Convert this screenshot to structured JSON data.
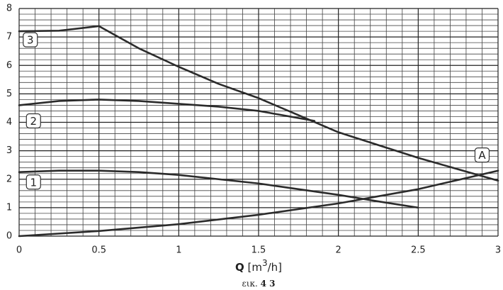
{
  "chart_data": {
    "type": "line",
    "x_label": {
      "symbol": "Q",
      "unit_open": "[m",
      "unit_power": "3",
      "unit_close": "/h]"
    },
    "caption": {
      "prefix": "εικ.",
      "number": "4 3"
    },
    "xlim": [
      0,
      3
    ],
    "xticks": [
      0,
      {
        "value": 0.5,
        "label": "0.5"
      },
      1,
      {
        "value": 1.5,
        "label": "1.5"
      },
      2,
      {
        "value": 2.5,
        "label": "2.5"
      },
      3
    ],
    "ylim": [
      0,
      8
    ],
    "yticks": [
      0,
      1,
      2,
      3,
      4,
      5,
      6,
      7,
      8
    ],
    "grid": true,
    "grid_minor_divisions": 5,
    "series": [
      {
        "name": "1",
        "color": "#2b2b2b",
        "x": [
          0,
          0.25,
          0.5,
          0.75,
          1,
          1.25,
          1.5,
          1.75,
          2,
          2.25,
          2.5
        ],
        "values": [
          2.25,
          2.3,
          2.3,
          2.25,
          2.15,
          2.0,
          1.85,
          1.65,
          1.45,
          1.22,
          1.0
        ]
      },
      {
        "name": "2",
        "color": "#2b2b2b",
        "x": [
          0,
          0.25,
          0.5,
          0.75,
          1,
          1.25,
          1.5,
          1.75,
          1.85
        ],
        "values": [
          4.6,
          4.75,
          4.8,
          4.75,
          4.65,
          4.55,
          4.4,
          4.15,
          4.05
        ]
      },
      {
        "name": "3",
        "color": "#2b2b2b",
        "x": [
          0,
          0.25,
          0.5,
          0.75,
          1,
          1.25,
          1.5,
          1.75,
          2,
          2.25,
          2.5,
          2.75,
          3
        ],
        "values": [
          7.2,
          7.22,
          7.38,
          6.6,
          5.95,
          5.35,
          4.85,
          4.25,
          3.65,
          3.2,
          2.75,
          2.35,
          1.95
        ]
      },
      {
        "name": "A",
        "color": "#2b2b2b",
        "x": [
          0,
          0.5,
          1,
          1.5,
          2,
          2.5,
          3
        ],
        "values": [
          0,
          0.18,
          0.42,
          0.75,
          1.15,
          1.65,
          2.3
        ]
      }
    ]
  }
}
